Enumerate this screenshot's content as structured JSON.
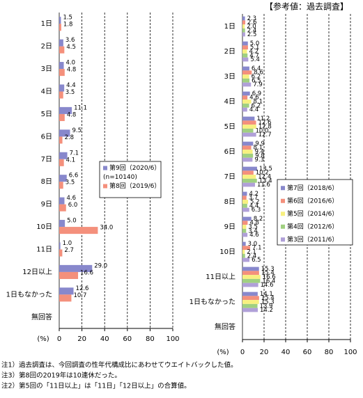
{
  "chart_data": [
    {
      "type": "hbar",
      "categories": [
        "1日",
        "2日",
        "3日",
        "4日",
        "5日",
        "6日",
        "7日",
        "8日",
        "9日",
        "10日",
        "11日",
        "12日以上",
        "1日もなかった",
        "無回答"
      ],
      "series": [
        {
          "name": "第9回（2020/6）",
          "color": "#8888cc",
          "values": [
            1.5,
            3.6,
            4.0,
            4.4,
            11.1,
            9.5,
            7.1,
            6.6,
            4.6,
            5.0,
            1.0,
            29.0,
            12.6,
            null
          ],
          "value_labels": [
            "1.5",
            "3.6",
            "4.0",
            "4.4",
            "11.1",
            "9.5",
            "7.1",
            "6.6",
            "4.6",
            "5.0",
            "1.0",
            "29.0",
            "12.6",
            null
          ]
        },
        {
          "name": "第8回（2019/6）",
          "color": "#f4907c",
          "values": [
            1.8,
            4.5,
            4.8,
            3.5,
            4.8,
            2.8,
            4.1,
            3.5,
            6.0,
            34.0,
            2.7,
            16.6,
            10.7,
            null
          ],
          "value_labels": [
            "1.8",
            "4.5",
            "4.8",
            "3.5",
            "4.8",
            "2.8",
            "4.1",
            "3.5",
            "6.0",
            "34.0",
            "2.7",
            "16.6",
            "10.7",
            null
          ]
        }
      ],
      "sample_size": "(n=10140)",
      "x_label": "(%)",
      "xlim": [
        0,
        100
      ],
      "xticks": [
        0,
        20,
        40,
        60,
        80,
        100
      ],
      "grid": true
    },
    {
      "type": "hbar",
      "title": "【参考値：過去調査】",
      "categories": [
        "1日",
        "2日",
        "3日",
        "4日",
        "5日",
        "6日",
        "7日",
        "8日",
        "9日",
        "10日",
        "11日以上",
        "1日もなかった",
        "無回答"
      ],
      "series": [
        {
          "name": "第7回（2018/6）",
          "color": "#8888cc",
          "values": [
            2.3,
            5.0,
            6.4,
            6.9,
            11.2,
            9.9,
            13.5,
            4.2,
            8.2,
            3.0,
            15.3,
            14.1,
            null
          ],
          "value_labels": [
            "2.3",
            "5.0",
            "6.4",
            "6.9",
            "11.2",
            "9.9",
            "13.5",
            "4.2",
            "8.2",
            "3.0",
            "15.3",
            "14.1",
            null
          ]
        },
        {
          "name": "第6回（2016/6）",
          "color": "#f4907c",
          "values": [
            2.6,
            5.1,
            8.6,
            4.6,
            12.6,
            8.1,
            10.2,
            3.7,
            4.8,
            7.1,
            15.4,
            15.4,
            null
          ],
          "value_labels": [
            "2.6",
            "5.1",
            "8.6",
            "4.6",
            "12.6",
            "8.1",
            "10.2",
            "3.7",
            "4.8",
            "7.1",
            "15.4",
            "15.4",
            null
          ]
        },
        {
          "name": "第5回（2014/6）",
          "color": "#f8f080",
          "values": [
            2.0,
            4.2,
            6.2,
            8.1,
            12.8,
            9.4,
            12.4,
            5.2,
            3.5,
            2.1,
            16.6,
            15.3,
            null
          ],
          "value_labels": [
            "2.0",
            "4.2",
            "6.2",
            "8.1",
            "12.8",
            "9.4",
            "12.4",
            "5.2",
            "3.5",
            "2.1",
            "16.6",
            "15.3",
            null
          ]
        },
        {
          "name": "第4回（2012/6）",
          "color": "#a0d080",
          "values": [
            2.4,
            4.7,
            6.5,
            6.2,
            10.0,
            9.8,
            13.4,
            4.4,
            3.4,
            2.4,
            16.4,
            13.9,
            null
          ],
          "value_labels": [
            "2.4",
            "4.7",
            "6.5",
            "6.2",
            "10.0",
            "9.8",
            "13.4",
            "4.4",
            "3.4",
            "2.4",
            "16.4",
            "13.9",
            null
          ]
        },
        {
          "name": "第3回（2011/6）",
          "color": "#b0a0d8",
          "values": [
            2.5,
            5.4,
            7.9,
            4.4,
            12.7,
            9.3,
            11.6,
            6.3,
            4.6,
            6.5,
            14.6,
            14.2,
            null
          ],
          "value_labels": [
            "2.5",
            "5.4",
            "7.9",
            "4.4",
            "12.7",
            "9.3",
            "11.6",
            "6.3",
            "4.6",
            "6.5",
            "14.6",
            "14.2",
            null
          ]
        }
      ],
      "x_label": "(%)",
      "xlim": [
        0,
        100
      ],
      "xticks": [
        0,
        20,
        40,
        60,
        80,
        100
      ],
      "grid": true
    }
  ],
  "notes": [
    "注1）過去調査は、今回調査の性年代構成比にあわせてウエイトバックした値。",
    "注3）第8回の2019年は10連休だった。",
    "注2）第5回の「11日以上」は「11日」「12日以上」の合算値。"
  ]
}
